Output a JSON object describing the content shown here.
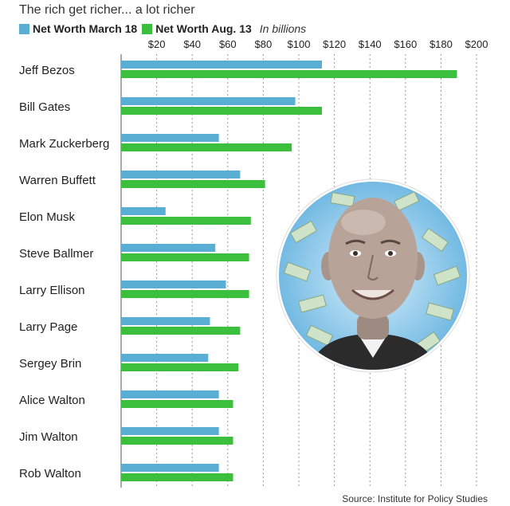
{
  "header": {
    "subtitle": "The rich get richer... a lot richer",
    "unit_note": "In billions"
  },
  "source": "Source: Institute for Policy Studies",
  "colors": {
    "march": "#5aaed3",
    "aug": "#3cbf3c",
    "grid": "#9a9a9a"
  },
  "chart_data": {
    "type": "bar",
    "orientation": "horizontal",
    "categories": [
      "Jeff Bezos",
      "Bill Gates",
      "Mark Zuckerberg",
      "Warren Buffett",
      "Elon Musk",
      "Steve Ballmer",
      "Larry Ellison",
      "Larry Page",
      "Sergey Brin",
      "Alice Walton",
      "Jim Walton",
      "Rob Walton"
    ],
    "series": [
      {
        "name": "Net Worth March 18",
        "values": [
          113,
          98,
          55,
          67,
          25,
          53,
          59,
          50,
          49,
          55,
          55,
          55
        ]
      },
      {
        "name": "Net Worth Aug. 13",
        "values": [
          189,
          113,
          96,
          81,
          73,
          72,
          72,
          67,
          66,
          63,
          63,
          63
        ]
      }
    ],
    "x_ticks": [
      "$20",
      "$40",
      "$60",
      "$80",
      "$100",
      "$120",
      "$140",
      "$160",
      "$180",
      "$200"
    ],
    "x_tick_values": [
      20,
      40,
      60,
      80,
      100,
      120,
      140,
      160,
      180,
      200
    ],
    "xlim": [
      0,
      200
    ],
    "grid": true,
    "legend_position": "top-left"
  }
}
